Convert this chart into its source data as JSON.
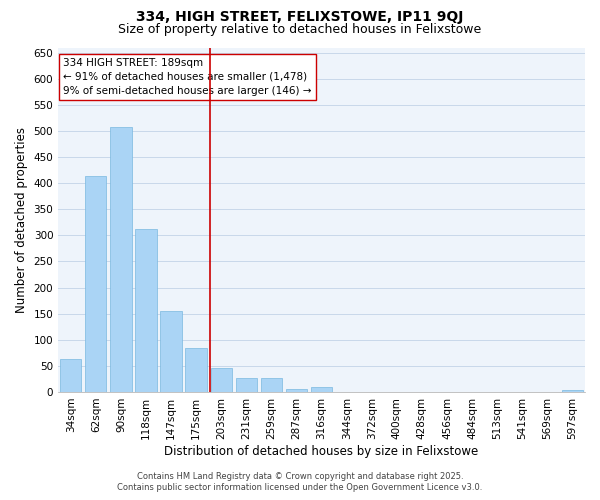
{
  "title": "334, HIGH STREET, FELIXSTOWE, IP11 9QJ",
  "subtitle": "Size of property relative to detached houses in Felixstowe",
  "xlabel": "Distribution of detached houses by size in Felixstowe",
  "ylabel": "Number of detached properties",
  "bar_labels": [
    "34sqm",
    "62sqm",
    "90sqm",
    "118sqm",
    "147sqm",
    "175sqm",
    "203sqm",
    "231sqm",
    "259sqm",
    "287sqm",
    "316sqm",
    "344sqm",
    "372sqm",
    "400sqm",
    "428sqm",
    "456sqm",
    "484sqm",
    "513sqm",
    "541sqm",
    "569sqm",
    "597sqm"
  ],
  "bar_values": [
    63,
    413,
    507,
    313,
    156,
    85,
    45,
    26,
    26,
    5,
    10,
    0,
    0,
    0,
    0,
    0,
    0,
    0,
    0,
    0,
    3
  ],
  "bar_color": "#aad4f5",
  "bar_edge_color": "#7ab8e0",
  "ylim": [
    0,
    660
  ],
  "yticks": [
    0,
    50,
    100,
    150,
    200,
    250,
    300,
    350,
    400,
    450,
    500,
    550,
    600,
    650
  ],
  "vline_x": 5.57,
  "vline_color": "#cc0000",
  "annotation_box_text": "334 HIGH STREET: 189sqm\n← 91% of detached houses are smaller (1,478)\n9% of semi-detached houses are larger (146) →",
  "footer_line1": "Contains HM Land Registry data © Crown copyright and database right 2025.",
  "footer_line2": "Contains public sector information licensed under the Open Government Licence v3.0.",
  "plot_bg_color": "#eef4fb",
  "grid_color": "#c8d8ea",
  "title_fontsize": 10,
  "subtitle_fontsize": 9,
  "axis_label_fontsize": 8.5,
  "tick_fontsize": 7.5,
  "footer_fontsize": 6,
  "annot_fontsize": 7.5
}
